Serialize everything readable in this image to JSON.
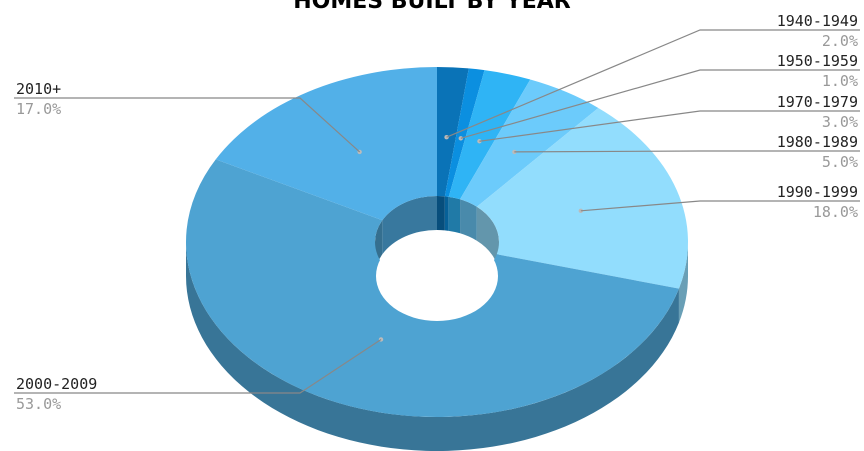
{
  "chart_data": {
    "type": "pie",
    "title": "HOMES BUILT BY YEAR",
    "categories": [
      "1940-1949",
      "1950-1959",
      "1970-1979",
      "1980-1989",
      "1990-1999",
      "2000-2009",
      "2010+"
    ],
    "values": [
      2.0,
      1.0,
      3.0,
      5.0,
      18.0,
      53.0,
      17.0
    ],
    "value_labels": [
      "2.0%",
      "1.0%",
      "3.0%",
      "5.0%",
      "18.0%",
      "53.0%",
      "17.0%"
    ],
    "colors": [
      "#0a73b7",
      "#0b8fe0",
      "#2fb4f5",
      "#6ccbfb",
      "#92ddfd",
      "#4ea3d2",
      "#52b0e8"
    ],
    "style": "3d-donut",
    "legend": "none"
  }
}
